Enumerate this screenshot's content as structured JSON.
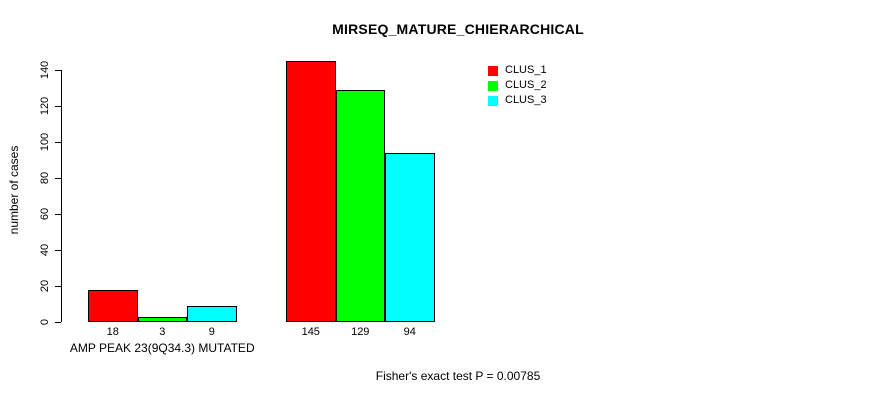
{
  "chart_data": {
    "type": "bar",
    "title": "MIRSEQ_MATURE_CHIERARCHICAL",
    "ylabel": "number of cases",
    "xlabel": "",
    "yticks": [
      0,
      20,
      40,
      60,
      80,
      100,
      120,
      140
    ],
    "ylim": [
      0,
      145
    ],
    "grid": false,
    "legend_position": "top-right",
    "series": [
      {
        "name": "CLUS_1",
        "color": "#ff0000"
      },
      {
        "name": "CLUS_2",
        "color": "#00ff00"
      },
      {
        "name": "CLUS_3",
        "color": "#00ffff"
      }
    ],
    "categories": [
      "AMP PEAK 23(9Q34.3) MUTATED",
      ""
    ],
    "groups": [
      {
        "label": "AMP PEAK 23(9Q34.3) MUTATED",
        "values": [
          18,
          3,
          9
        ]
      },
      {
        "label": "",
        "values": [
          145,
          129,
          94
        ]
      }
    ],
    "annotation": "Fisher's exact test P = 0.00785",
    "colors": {
      "background": "#ffffff",
      "axis": "#000000",
      "text": "#000000"
    }
  }
}
